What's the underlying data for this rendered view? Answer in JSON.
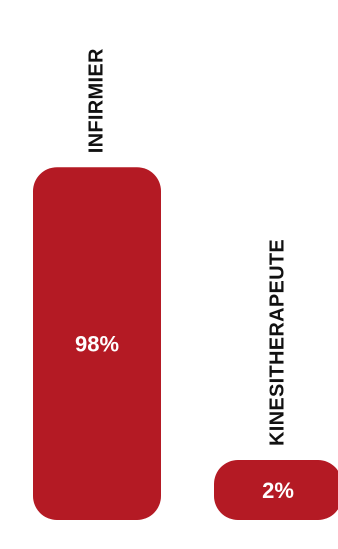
{
  "chart_data": {
    "type": "bar",
    "categories": [
      "INFIRMIER",
      "KINESITHERAPEUTE"
    ],
    "values": [
      98,
      2
    ],
    "value_labels": [
      "98%",
      "2%"
    ],
    "ylim": [
      0,
      100
    ],
    "grid": false,
    "bar_color": "#b41a24",
    "label_color": "#111111",
    "value_label_color": "#ffffff"
  }
}
